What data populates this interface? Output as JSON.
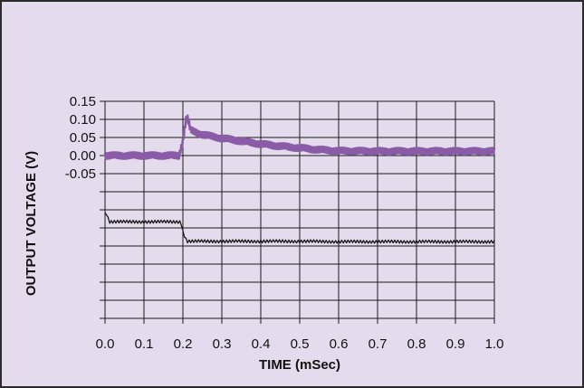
{
  "chart_data": {
    "type": "line",
    "title": "",
    "xlabel": "TIME (mSec)",
    "ylabel": "OUTPUT VOLTAGE (V)",
    "xlim": [
      0.0,
      1.0
    ],
    "x_ticks": [
      "0.0",
      "0.1",
      "0.2",
      "0.3",
      "0.4",
      "0.5",
      "0.6",
      "0.7",
      "0.8",
      "0.9",
      "1.0"
    ],
    "y_ticks": [
      "0.15",
      "0.10",
      "0.05",
      "0.00",
      "-0.05"
    ],
    "ylim": [
      -0.45,
      0.15
    ],
    "grid": true,
    "series": [
      {
        "color": "#8a5ca8",
        "x": [
          0.0,
          0.19,
          0.2,
          0.205,
          0.21,
          0.22,
          0.25,
          0.3,
          0.35,
          0.4,
          0.45,
          0.5,
          0.55,
          0.6,
          0.7,
          0.8,
          0.9,
          1.0
        ],
        "values": [
          0.0,
          0.0,
          0.04,
          0.08,
          0.11,
          0.07,
          0.058,
          0.048,
          0.04,
          0.032,
          0.026,
          0.021,
          0.016,
          0.013,
          0.012,
          0.012,
          0.012,
          0.012
        ]
      },
      {
        "color": "#1a1a1a",
        "x": [
          0.0,
          0.005,
          0.01,
          0.19,
          0.195,
          0.2,
          0.21,
          0.3,
          0.4,
          0.5,
          0.6,
          0.7,
          0.8,
          0.9,
          1.0
        ],
        "values": [
          -0.16,
          -0.16,
          -0.183,
          -0.183,
          -0.183,
          -0.21,
          -0.237,
          -0.237,
          -0.237,
          -0.237,
          -0.238,
          -0.238,
          -0.238,
          -0.238,
          -0.238
        ]
      }
    ]
  }
}
